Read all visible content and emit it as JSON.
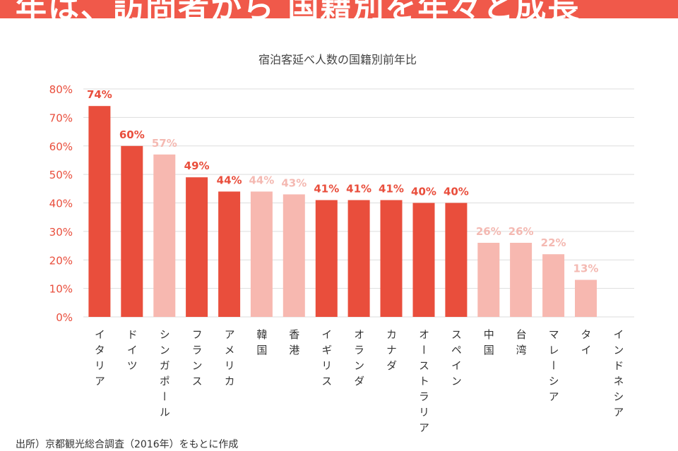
{
  "header": {
    "title": "年は、訪問者から 国籍別を年々と成長"
  },
  "chart_data": {
    "type": "bar",
    "title": "宿泊客延べ人数の国籍別前年比",
    "xlabel": "",
    "ylabel": "",
    "ylim": [
      0,
      80
    ],
    "yticks": [
      "0%",
      "10%",
      "20%",
      "30%",
      "40%",
      "50%",
      "60%",
      "70%",
      "80%"
    ],
    "grid": true,
    "categories": [
      "イタリア",
      "ドイツ",
      "シンガポール",
      "フランス",
      "アメリカ",
      "韓国",
      "香港",
      "イギリス",
      "オランダ",
      "カナダ",
      "オーストラリア",
      "スペイン",
      "中国",
      "台湾",
      "マレーシア",
      "タイ",
      "インドネシア"
    ],
    "values": [
      74,
      60,
      57,
      49,
      44,
      44,
      43,
      41,
      41,
      41,
      40,
      40,
      26,
      26,
      22,
      13,
      null
    ],
    "labels": [
      "74%",
      "60%",
      "57%",
      "49%",
      "44%",
      "44%",
      "43%",
      "41%",
      "41%",
      "41%",
      "40%",
      "40%",
      "26%",
      "26%",
      "22%",
      "13%",
      ""
    ],
    "highlight": [
      true,
      true,
      false,
      true,
      true,
      false,
      false,
      true,
      true,
      true,
      true,
      true,
      false,
      false,
      false,
      false,
      false
    ],
    "colors": {
      "highlight_bar": "#e94e3c",
      "muted_bar": "#f7b8b0",
      "highlight_label": "#e94e3c",
      "muted_label": "#f4b9b2",
      "axis_tick": "#e94e3c",
      "category_text": "#333333",
      "title_text": "#444444",
      "grid": "#dddddd"
    }
  },
  "footer": {
    "source": "出所）京都観光総合調査（2016年）をもとに作成"
  }
}
